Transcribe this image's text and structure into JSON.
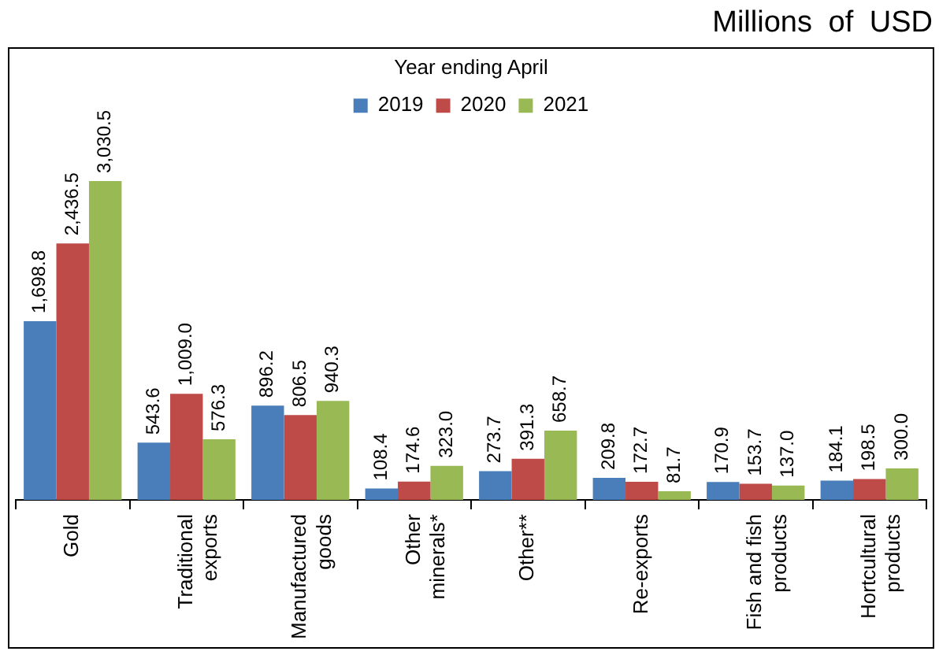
{
  "chart_data": {
    "type": "bar",
    "title": "Millions of USD",
    "legend_title": "Year ending April",
    "legend": "top",
    "categories": [
      "Gold",
      "Traditional exports",
      "Manufactured goods",
      "Other minerals*",
      "Other**",
      "Re-exports",
      "Fish and fish products",
      "Hortcultural products"
    ],
    "series": [
      {
        "name": "2019",
        "color": "#4a7ebb",
        "values": [
          1698.8,
          543.6,
          896.2,
          108.4,
          273.7,
          209.8,
          170.9,
          184.1
        ],
        "value_labels": [
          "1,698.8",
          "543.6",
          "896.2",
          "108.4",
          "273.7",
          "209.8",
          "170.9",
          "184.1"
        ]
      },
      {
        "name": "2020",
        "color": "#be4b48",
        "values": [
          2436.5,
          1009.0,
          806.5,
          174.6,
          391.3,
          172.7,
          153.7,
          198.5
        ],
        "value_labels": [
          "2,436.5",
          "1,009.0",
          "806.5",
          "174.6",
          "391.3",
          "172.7",
          "153.7",
          "198.5"
        ]
      },
      {
        "name": "2021",
        "color": "#98b954",
        "values": [
          3030.5,
          576.3,
          940.3,
          323.0,
          658.7,
          81.7,
          137.0,
          300.0
        ],
        "value_labels": [
          "3,030.5",
          "576.3",
          "940.3",
          "323.0",
          "658.7",
          "81.7",
          "137.0",
          "300.0"
        ]
      }
    ]
  }
}
